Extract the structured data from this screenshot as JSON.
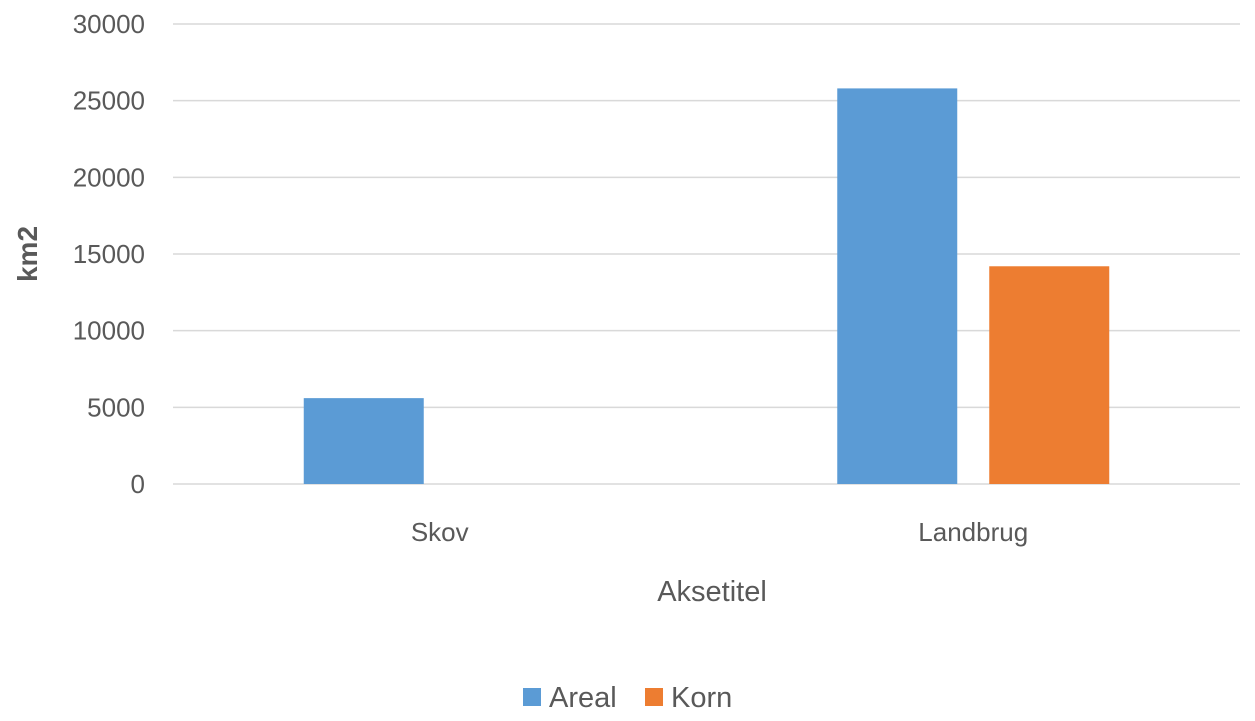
{
  "chart_data": {
    "type": "bar",
    "categories": [
      "Skov",
      "Landbrug"
    ],
    "series": [
      {
        "name": "Areal",
        "color": "#5b9bd5",
        "values": [
          5600,
          25800
        ]
      },
      {
        "name": "Korn",
        "color": "#ed7d31",
        "values": [
          0,
          14200
        ]
      }
    ],
    "xlabel": "Aksetitel",
    "ylabel": "km2",
    "ylim": [
      0,
      30000
    ],
    "yticks": [
      0,
      5000,
      10000,
      15000,
      20000,
      25000,
      30000
    ],
    "grid": true,
    "legend_position": "bottom"
  }
}
